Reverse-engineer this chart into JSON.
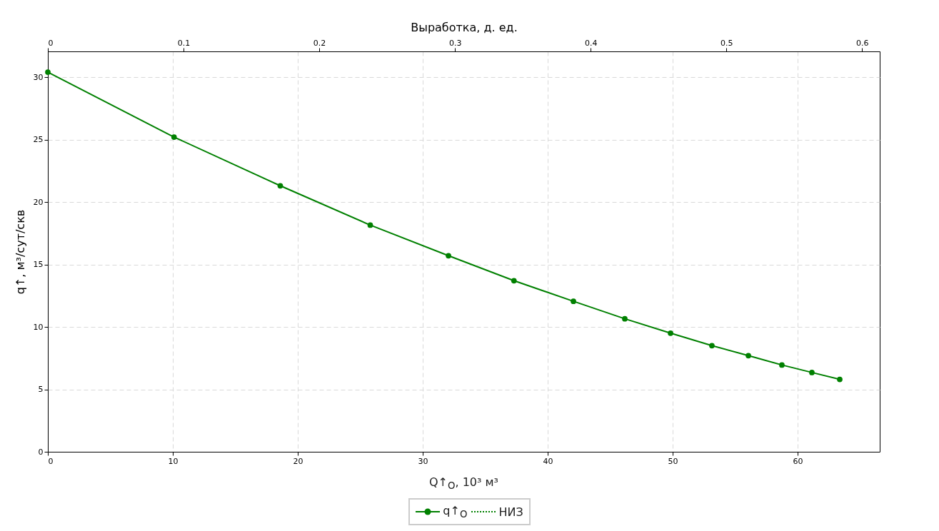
{
  "chart_data": {
    "type": "line",
    "xlabel": "Q↑$_{O}$, 10³ м³",
    "ylabel": "q↑, м³/сут/скв",
    "x2label": "Выработка, д. ед.",
    "x": [
      0,
      10.1,
      18.6,
      25.8,
      32.06,
      37.3,
      42.06,
      46.17,
      49.83,
      53.14,
      56.06,
      58.74,
      61.14,
      63.37
    ],
    "series": [
      {
        "name": "q↑$_{O}$",
        "color": "#008000",
        "marker": "circle",
        "line_style": "solid",
        "values": [
          30.4,
          25.2,
          21.3,
          18.15,
          15.7,
          13.7,
          12.05,
          10.65,
          9.5,
          8.5,
          7.7,
          6.95,
          6.35,
          5.8
        ]
      },
      {
        "name": "НИЗ",
        "color": "#008000",
        "marker": "none",
        "line_style": "dotted",
        "values": [
          null,
          null,
          null,
          null,
          null,
          null,
          null,
          null,
          null,
          null,
          null,
          null,
          null,
          null
        ]
      }
    ],
    "xlim": [
      0,
      66.57
    ],
    "xticks": [
      0,
      10,
      20,
      30,
      40,
      50,
      60
    ],
    "x2lim": [
      0,
      0.613
    ],
    "x2ticks": [
      0,
      0.1,
      0.2,
      0.3,
      0.4,
      0.5,
      0.6
    ],
    "ylim": [
      0,
      32.06
    ],
    "yticks": [
      0,
      5,
      10,
      15,
      20,
      25,
      30
    ],
    "grid": true,
    "legend": "bottom"
  }
}
